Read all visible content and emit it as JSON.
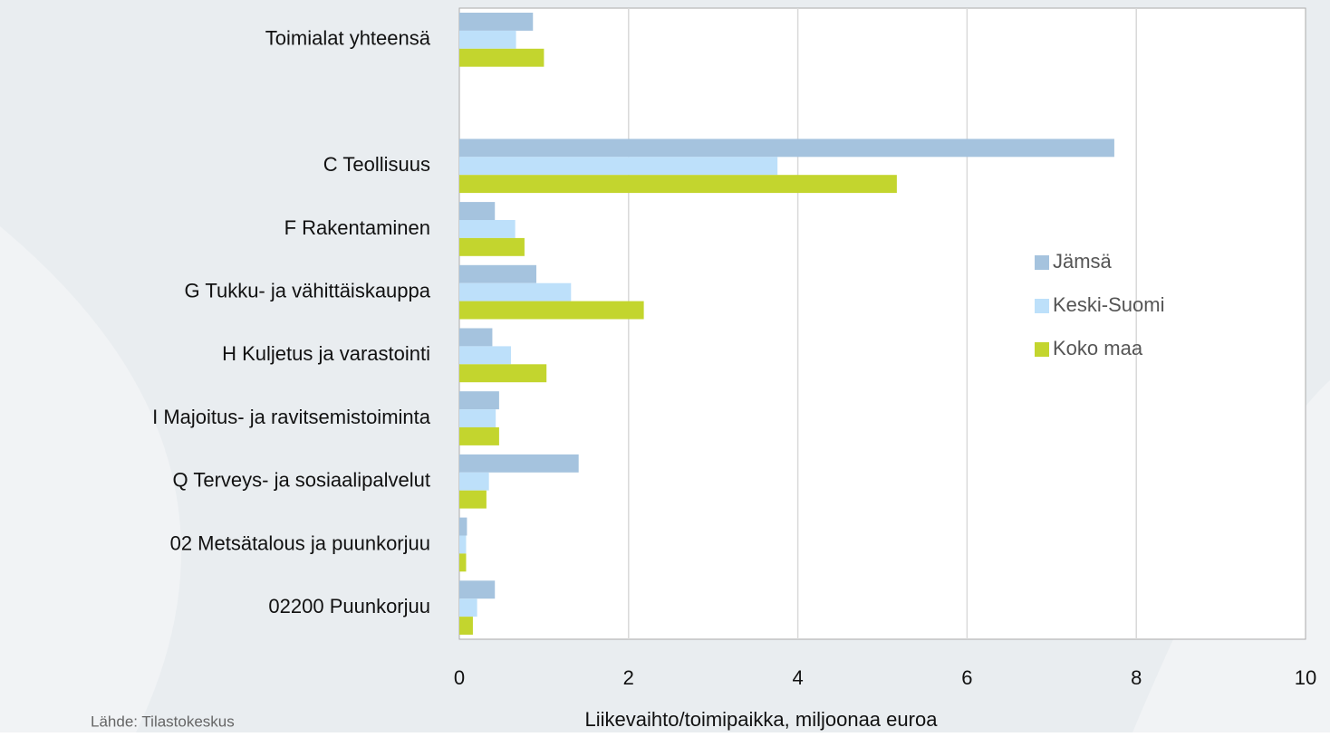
{
  "chart_data": {
    "type": "barh",
    "categories": [
      "Toimialat yhteensä",
      null,
      "C Teollisuus",
      "F Rakentaminen",
      "G Tukku- ja vähittäiskauppa",
      "H Kuljetus ja varastointi",
      "I Majoitus- ja ravitsemistoiminta",
      "Q Terveys- ja sosiaalipalvelut",
      "02 Metsätalous ja puunkorjuu",
      "02200 Puunkorjuu"
    ],
    "series": [
      {
        "name": "Jämsä",
        "color": "#a5c3de",
        "values": [
          0.87,
          null,
          7.74,
          0.42,
          0.91,
          0.39,
          0.47,
          1.41,
          0.09,
          0.42
        ]
      },
      {
        "name": "Keski-Suomi",
        "color": "#bde0fa",
        "values": [
          0.67,
          null,
          3.76,
          0.66,
          1.32,
          0.61,
          0.43,
          0.35,
          0.08,
          0.21
        ]
      },
      {
        "name": "Koko maa",
        "color": "#c3d52e",
        "values": [
          1.0,
          null,
          5.17,
          0.77,
          2.18,
          1.03,
          0.47,
          0.32,
          0.08,
          0.16
        ]
      }
    ],
    "xlim": [
      0,
      10
    ],
    "xticks": [
      0,
      2,
      4,
      6,
      8,
      10
    ],
    "xlabel": "Liikevaihto/toimipaikka, miljoonaa euroa",
    "grid": true,
    "legend": "right",
    "source": "Lähde: Tilastokeskus"
  }
}
